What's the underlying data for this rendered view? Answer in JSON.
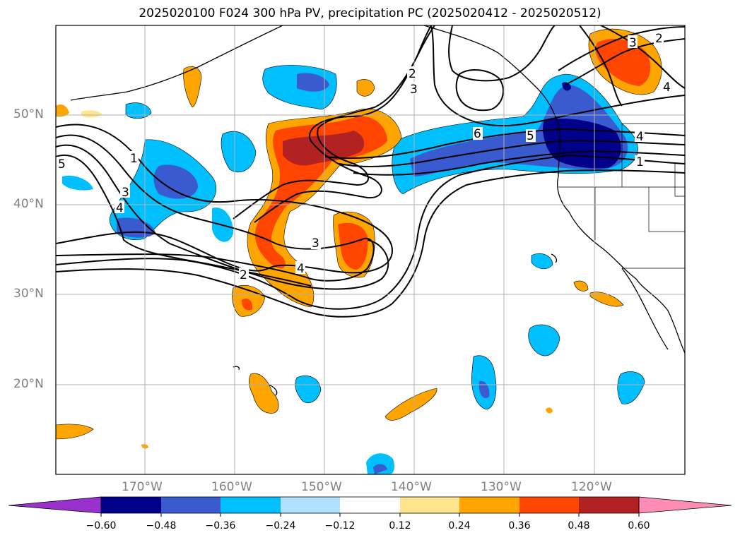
{
  "title": "2025020100 F024 300 hPa PV, precipitation PC (2025020412 - 2025020512)",
  "map": {
    "lat_labels": [
      "50°N",
      "40°N",
      "30°N",
      "20°N"
    ],
    "lon_labels": [
      "170°W",
      "160°W",
      "150°W",
      "140°W",
      "130°W",
      "120°W"
    ],
    "pv_contour_labels": [
      "1",
      "2",
      "3",
      "4",
      "5",
      "6"
    ],
    "contour_color": "#000000",
    "gridline_color": "#b0b0b0"
  },
  "colorbar": {
    "tick_labels": [
      "−0.60",
      "−0.48",
      "−0.36",
      "−0.24",
      "−0.12",
      "0.12",
      "0.24",
      "0.36",
      "0.48",
      "0.60"
    ],
    "colors": [
      "#9932cc",
      "#00008b",
      "#3a5bcf",
      "#00bfff",
      "#b0e2ff",
      "#ffffff",
      "#ffe68c",
      "#ffa500",
      "#ff4500",
      "#b22222",
      "#ff8cb4"
    ],
    "extend": "both"
  },
  "precip_colors": {
    "neg_weak": "#00bfff",
    "neg_mid": "#3a5bcf",
    "neg_strong": "#00008b",
    "pos_weak": "#ffa500",
    "pos_light": "#ffe68c",
    "pos_mid": "#ff4500",
    "pos_strong": "#b22222"
  }
}
